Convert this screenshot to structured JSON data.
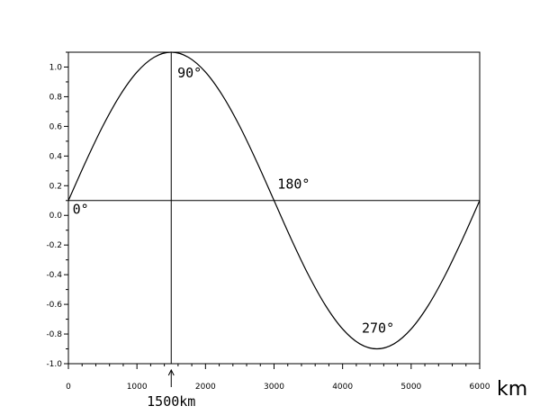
{
  "chart_data": {
    "type": "line",
    "xlim": [
      0,
      6000
    ],
    "ylim": [
      -1.0,
      1.1
    ],
    "x_ticks": [
      0,
      1000,
      2000,
      3000,
      4000,
      5000,
      6000
    ],
    "x_tick_labels": [
      "0",
      "1000",
      "2000",
      "3000",
      "4000",
      "5000",
      "6000"
    ],
    "y_ticks": [
      -1.0,
      -0.8,
      -0.6,
      -0.4,
      -0.2,
      0.0,
      0.2,
      0.4,
      0.6,
      0.8,
      1.0
    ],
    "y_tick_labels": [
      "-1.0",
      "-0.8",
      "-0.6",
      "-0.4",
      "-0.2",
      "0.0",
      "0.2",
      "0.4",
      "0.6",
      "0.8",
      "1.0"
    ],
    "x_unit_label": "km",
    "grid": false,
    "baseline_y": 0.1,
    "series": [
      {
        "x": [
          0,
          250,
          500,
          750,
          1000,
          1250,
          1500,
          1750,
          2000,
          2250,
          2500,
          2750,
          3000,
          3250,
          3500,
          3750,
          4000,
          4250,
          4500,
          4750,
          5000,
          5250,
          5500,
          5750,
          6000
        ],
        "y": [
          0.1,
          0.359,
          0.6,
          0.807,
          0.966,
          1.066,
          1.1,
          1.066,
          0.966,
          0.807,
          0.6,
          0.359,
          0.1,
          -0.159,
          -0.4,
          -0.607,
          -0.766,
          -0.866,
          -0.9,
          -0.866,
          -0.766,
          -0.607,
          -0.4,
          -0.159,
          0.1
        ]
      }
    ],
    "vertical_line_x": 1500,
    "annotations": [
      {
        "label": "0°",
        "x": 60,
        "y": 0.01
      },
      {
        "label": "90°",
        "x": 1590,
        "y": 0.93
      },
      {
        "label": "180°",
        "x": 3050,
        "y": 0.18
      },
      {
        "label": "270°",
        "x": 4280,
        "y": -0.79
      },
      {
        "label": "1500km",
        "x": 1500,
        "y": -1.15
      }
    ]
  }
}
